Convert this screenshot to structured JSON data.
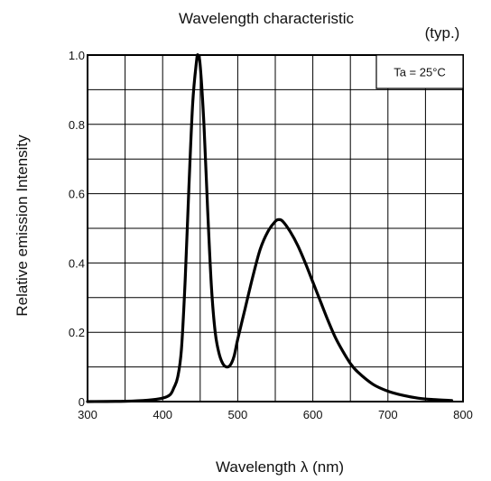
{
  "chart_data": {
    "type": "line",
    "title": "Wavelength characteristic",
    "subtitle": "(typ.)",
    "xlabel": "Wavelength λ (nm)",
    "ylabel": "Relative emission Intensity",
    "condition_label": "Ta = 25°C",
    "xlim": [
      300,
      800
    ],
    "ylim": [
      0,
      1.0
    ],
    "x_ticks": [
      300,
      400,
      500,
      600,
      700,
      800
    ],
    "x_tick_labels": [
      "300",
      "400",
      "500",
      "600",
      "700",
      "800"
    ],
    "y_ticks": [
      0,
      0.2,
      0.4,
      0.6,
      0.8,
      1.0
    ],
    "y_tick_labels": [
      "0",
      "0.2",
      "0.4",
      "0.6",
      "0.8",
      "1.0"
    ],
    "x_grid_step": 50,
    "y_grid_step": 0.1,
    "grid": true,
    "legend": "none",
    "series": [
      {
        "color": "#000000",
        "x": [
          300,
          350,
          380,
          400,
          410,
          415,
          420,
          425,
          430,
          435,
          440,
          445,
          447,
          450,
          455,
          460,
          465,
          470,
          475,
          480,
          485,
          490,
          495,
          500,
          510,
          520,
          530,
          540,
          550,
          555,
          560,
          570,
          580,
          590,
          600,
          610,
          620,
          630,
          640,
          650,
          660,
          680,
          700,
          720,
          740,
          760,
          785
        ],
        "y": [
          0.0,
          0.001,
          0.004,
          0.01,
          0.02,
          0.04,
          0.07,
          0.15,
          0.35,
          0.62,
          0.86,
          0.98,
          1.0,
          0.97,
          0.8,
          0.55,
          0.33,
          0.2,
          0.14,
          0.11,
          0.1,
          0.105,
          0.13,
          0.18,
          0.27,
          0.36,
          0.44,
          0.49,
          0.52,
          0.525,
          0.52,
          0.49,
          0.45,
          0.4,
          0.345,
          0.29,
          0.235,
          0.185,
          0.145,
          0.11,
          0.085,
          0.05,
          0.03,
          0.018,
          0.01,
          0.006,
          0.003
        ]
      }
    ]
  }
}
